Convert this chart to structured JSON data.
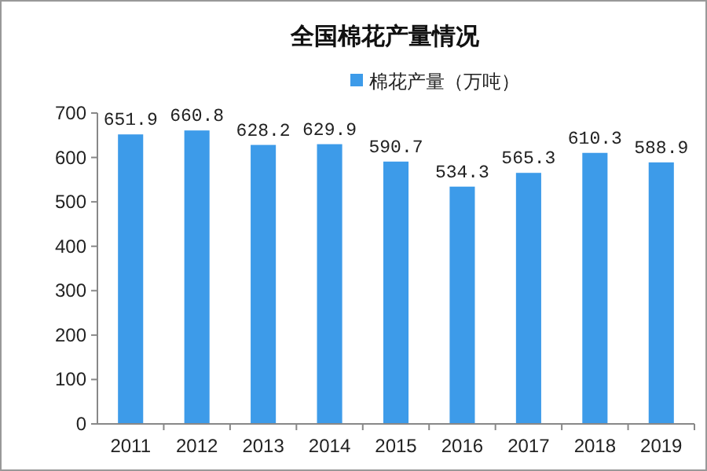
{
  "chart_data": {
    "type": "bar",
    "title": "全国棉花产量情况",
    "categories": [
      "2011",
      "2012",
      "2013",
      "2014",
      "2015",
      "2016",
      "2017",
      "2018",
      "2019"
    ],
    "series": [
      {
        "name": "棉花产量（万吨）",
        "color": "#3d9be9",
        "values": [
          651.9,
          660.8,
          628.2,
          629.9,
          590.7,
          534.3,
          565.3,
          610.3,
          588.9
        ]
      }
    ],
    "ylim": [
      0,
      700
    ],
    "yticks": [
      0,
      100,
      200,
      300,
      400,
      500,
      600,
      700
    ],
    "data_labels": true,
    "legend": "top",
    "grid": false
  }
}
